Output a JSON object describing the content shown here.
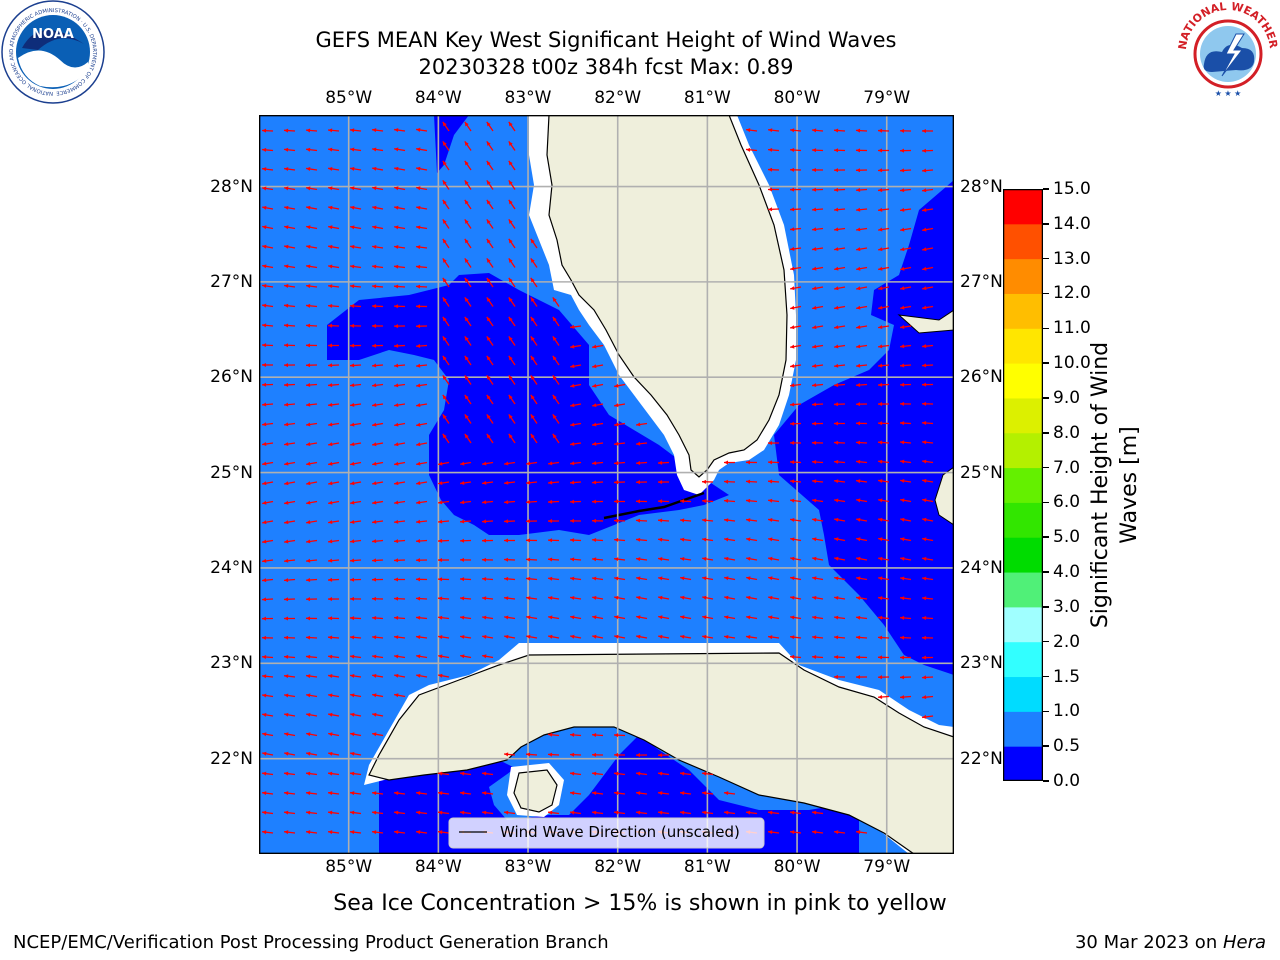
{
  "title": {
    "line1": "GEFS MEAN Key West Significant Height of Wind Waves",
    "line2": "20230328 t00z 384h fcst   Max: 0.89"
  },
  "logos": {
    "noaa": "NOAA",
    "noaa_ring": "NATIONAL OCEANIC AND ATMOSPHERIC ADMINISTRATION · U.S. DEPARTMENT OF COMMERCE",
    "nws_ring": "NATIONAL WEATHER SERVICE"
  },
  "colors": {
    "land": "#efefdc",
    "deep_blue": "#0000ff",
    "mid_blue": "#1e80ff",
    "arrow": "#ff0000",
    "grid": "#b0b0b0"
  },
  "legend": {
    "label": "Wind Wave Direction (unscaled)"
  },
  "footnote": "Sea Ice Concentration > 15% is shown in pink to yellow",
  "footer": {
    "left": "NCEP/EMC/Verification Post Processing Product Generation Branch",
    "right_date": "30 Mar 2023 on ",
    "right_host": "Hera"
  },
  "chart_data": {
    "type": "heatmap",
    "title": "GEFS MEAN Key West Significant Height of Wind Waves",
    "subtitle": "20230328 t00z 384h fcst   Max: 0.89",
    "max_value": 0.89,
    "lon_range": [
      -86.0,
      -78.25
    ],
    "lat_range": [
      21.0,
      28.75
    ],
    "lon_ticks": [
      -85,
      -84,
      -83,
      -82,
      -81,
      -80,
      -79
    ],
    "lat_ticks": [
      22,
      23,
      24,
      25,
      26,
      27,
      28
    ],
    "x_tick_labels": [
      "85°W",
      "84°W",
      "83°W",
      "82°W",
      "81°W",
      "80°W",
      "79°W"
    ],
    "y_tick_labels": [
      "22°N",
      "23°N",
      "24°N",
      "25°N",
      "26°N",
      "27°N",
      "28°N"
    ],
    "grid": true,
    "colorbar": {
      "label": "Significant Height of Wind Waves [m]",
      "levels": [
        0.0,
        0.5,
        1.0,
        1.5,
        2.0,
        3.0,
        4.0,
        5.0,
        6.0,
        7.0,
        8.0,
        9.0,
        10.0,
        11.0,
        12.0,
        13.0,
        14.0,
        15.0
      ],
      "tick_labels": [
        "0.0",
        "0.5",
        "1.0",
        "1.5",
        "2.0",
        "3.0",
        "4.0",
        "5.0",
        "6.0",
        "7.0",
        "8.0",
        "9.0",
        "10.0",
        "11.0",
        "12.0",
        "13.0",
        "14.0",
        "15.0"
      ],
      "colors": [
        "#0000ff",
        "#1e80ff",
        "#00dcff",
        "#32ffff",
        "#a0ffff",
        "#50f078",
        "#00dc00",
        "#32e600",
        "#64f000",
        "#b4f000",
        "#dcf000",
        "#ffff00",
        "#ffe600",
        "#ffbe00",
        "#ff8c00",
        "#ff5000",
        "#ff0000"
      ]
    },
    "legend": [
      "Wind Wave Direction (unscaled)"
    ]
  }
}
